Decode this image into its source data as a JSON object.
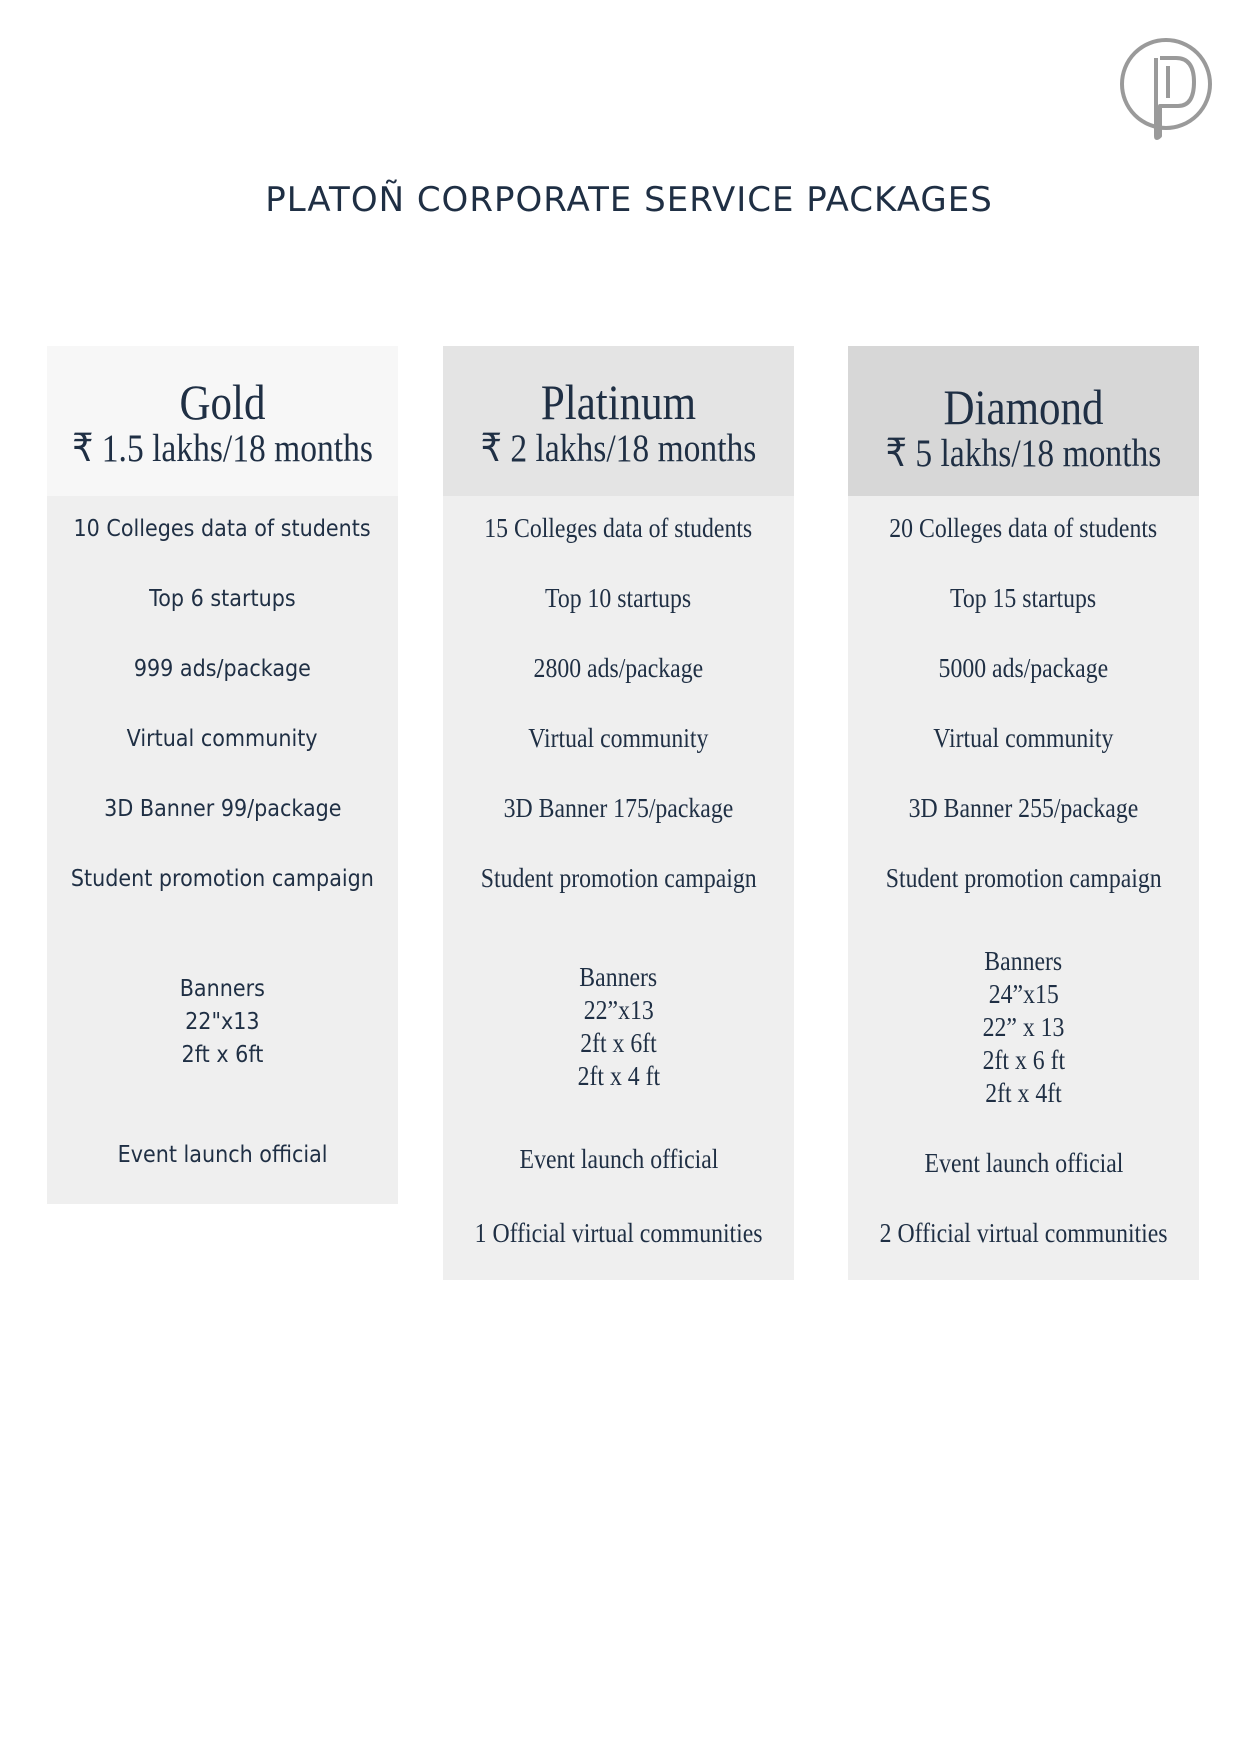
{
  "header": {
    "title": "PLATOÑ CORPORATE SERVICE PACKAGES",
    "logo_icon": "platon-logo-icon"
  },
  "packages": [
    {
      "name": "Gold",
      "price": "₹ 1.5 lakhs/18 months",
      "features": [
        "10 Colleges data of students",
        "Top 6 startups",
        "999 ads/package",
        "Virtual community",
        "3D Banner 99/package",
        "Student promotion campaign"
      ],
      "banners_title": "Banners",
      "banners": [
        "22\"x13",
        "2ft x 6ft"
      ],
      "extras": [
        "Event launch official"
      ]
    },
    {
      "name": "Platinum",
      "price": "₹ 2 lakhs/18 months",
      "features": [
        "15 Colleges data of students",
        "Top 10 startups",
        "2800 ads/package",
        "Virtual community",
        "3D Banner 175/package",
        "Student promotion campaign"
      ],
      "banners_title": "Banners",
      "banners": [
        "22”x13",
        "2ft x 6ft",
        "2ft x 4 ft"
      ],
      "extras": [
        "Event launch official",
        "1 Official virtual communities"
      ]
    },
    {
      "name": "Diamond",
      "price": "₹ 5 lakhs/18 months",
      "features": [
        "20 Colleges data of students",
        "Top 15 startups",
        "5000 ads/package",
        "Virtual community",
        "3D Banner 255/package",
        "Student promotion campaign"
      ],
      "banners_title": "Banners",
      "banners": [
        "24”x15",
        "22” x 13",
        "2ft x 6 ft",
        "2ft x 4ft"
      ],
      "extras": [
        "Event launch official",
        "2 Official virtual communities"
      ]
    }
  ],
  "colors": {
    "text": "#1f2f44",
    "card_body": "#efefef",
    "gold_header": "#f7f7f7",
    "platinum_header": "#e4e4e4",
    "diamond_header": "#d7d7d7",
    "logo": "#9a9a9a"
  }
}
